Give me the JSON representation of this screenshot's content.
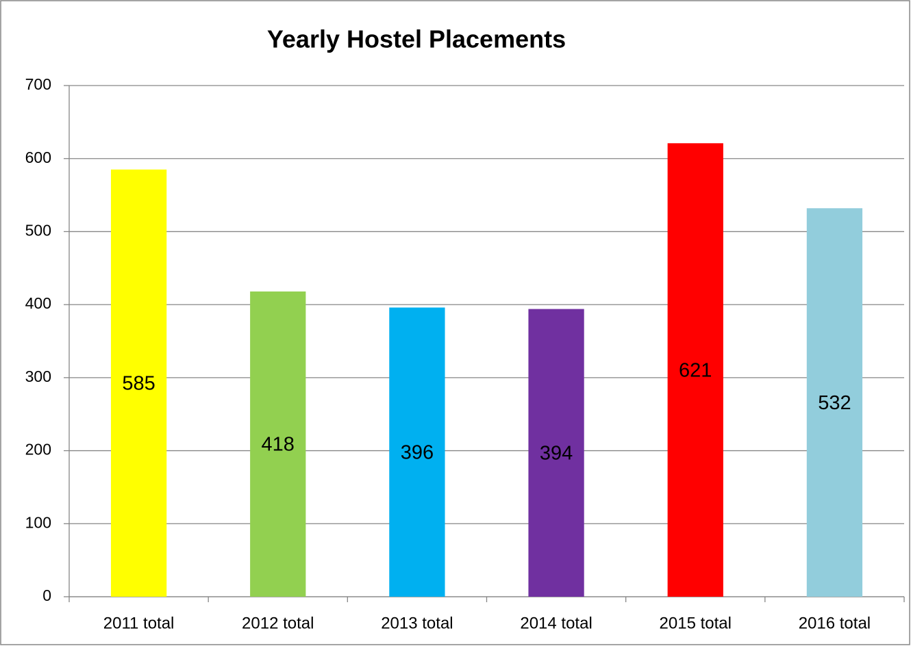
{
  "chart_data": {
    "type": "bar",
    "title": "Yearly Hostel Placements",
    "categories": [
      "2011 total",
      "2012 total",
      "2013 total",
      "2014 total",
      "2015 total",
      "2016 total"
    ],
    "values": [
      585,
      418,
      396,
      394,
      621,
      532
    ],
    "colors": [
      "#ffff00",
      "#92d050",
      "#00b0f0",
      "#7030a0",
      "#ff0000",
      "#92cddc"
    ],
    "ylim": [
      0,
      700
    ],
    "yticks": [
      0,
      100,
      200,
      300,
      400,
      500,
      600,
      700
    ],
    "grid": true
  }
}
